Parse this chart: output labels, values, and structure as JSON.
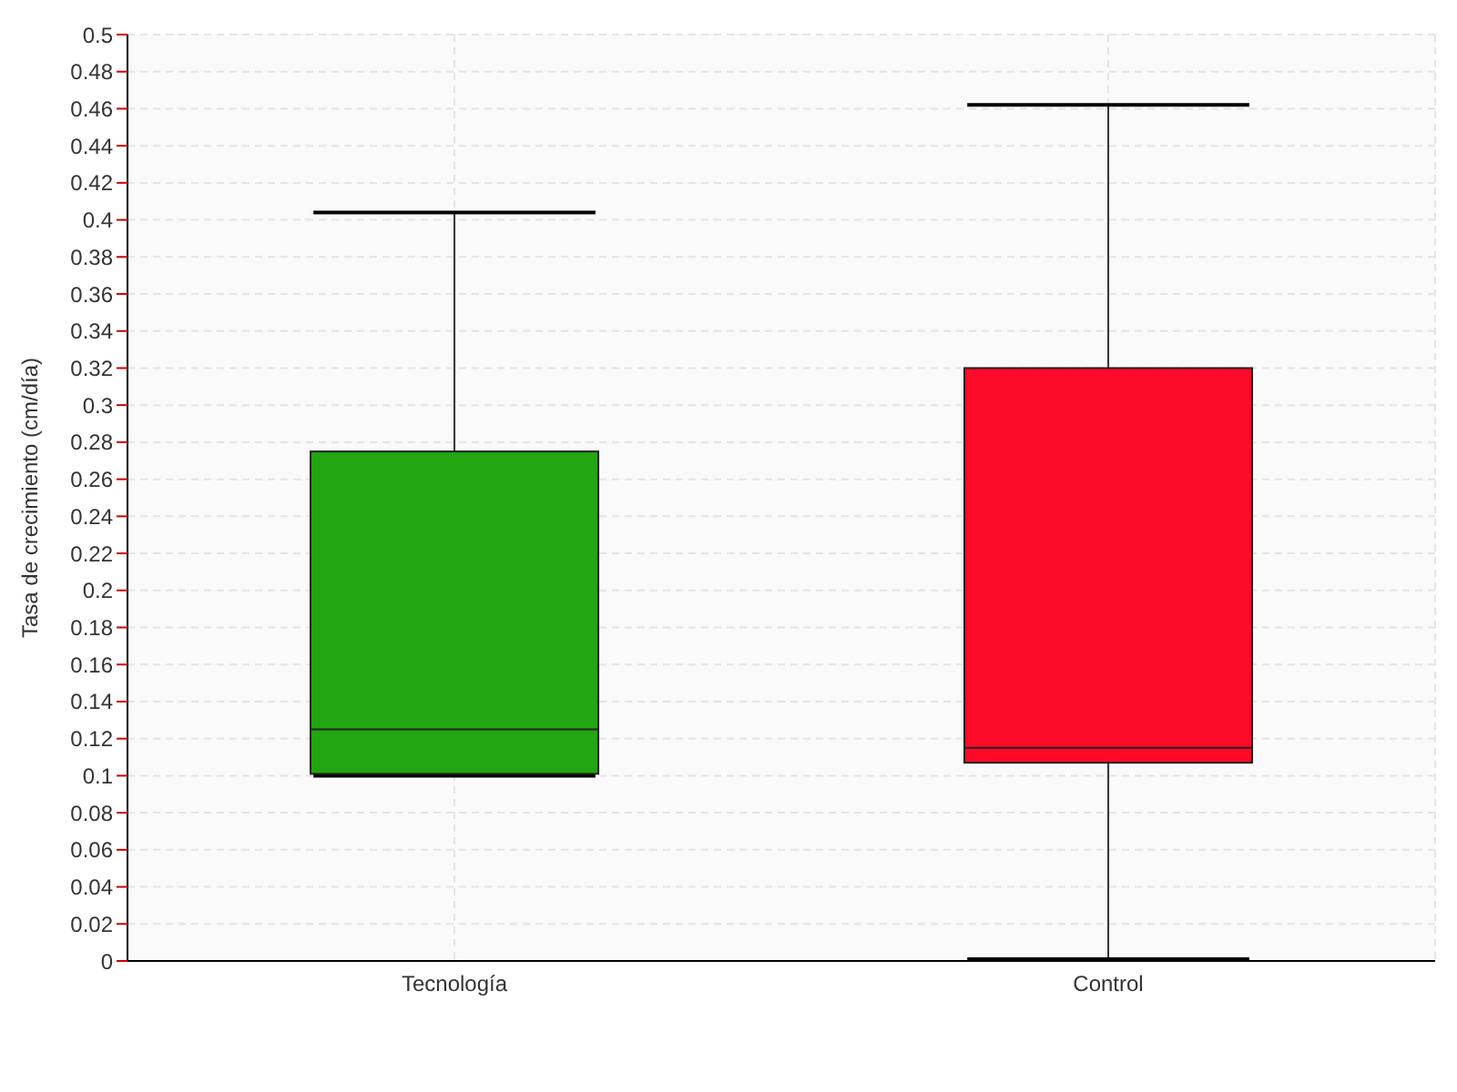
{
  "chart_data": {
    "type": "box",
    "ylabel": "Tasa de crecimiento (cm/día)",
    "categories": [
      "Tecnología",
      "Control"
    ],
    "boxes": [
      {
        "low": 0.1,
        "q1": 0.101,
        "median": 0.125,
        "q3": 0.275,
        "high": 0.404
      },
      {
        "low": 0.001,
        "q1": 0.107,
        "median": 0.115,
        "q3": 0.32,
        "high": 0.462
      }
    ],
    "colors": [
      "#22a612",
      "#ff0a28"
    ],
    "ylim": [
      0,
      0.5
    ],
    "yticks": [
      0,
      0.02,
      0.04,
      0.06,
      0.08,
      0.1,
      0.12,
      0.14,
      0.16,
      0.18,
      0.2,
      0.22,
      0.24,
      0.26,
      0.28,
      0.3,
      0.32,
      0.34,
      0.36,
      0.38,
      0.4,
      0.42,
      0.44,
      0.46,
      0.48,
      0.5
    ],
    "grid": true
  }
}
